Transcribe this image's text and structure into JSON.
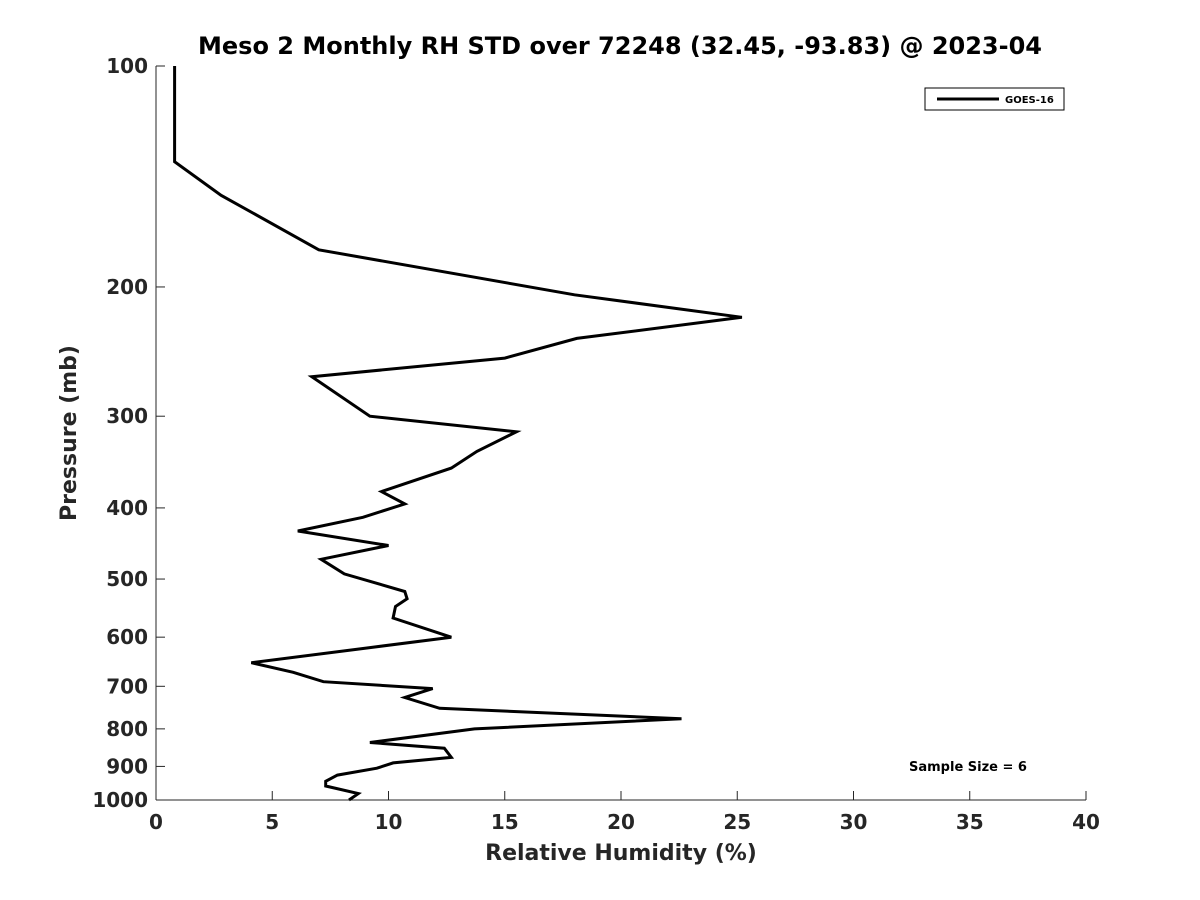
{
  "chart_data": {
    "type": "line",
    "title": "Meso 2 Monthly RH STD over 72248 (32.45, -93.83) @ 2023-04",
    "xlabel": "Relative Humidity (%)",
    "ylabel": "Pressure (mb)",
    "xlim": [
      0,
      40
    ],
    "ylim": [
      100,
      1000
    ],
    "y_scale": "log",
    "y_reversed": true,
    "x_ticks": [
      0,
      5,
      10,
      15,
      20,
      25,
      30,
      35,
      40
    ],
    "y_ticks": [
      100,
      200,
      300,
      400,
      500,
      600,
      700,
      800,
      900,
      1000
    ],
    "grid": false,
    "legend_position": "top-right",
    "series": [
      {
        "name": "GOES-16",
        "color": "#000000",
        "x": [
          0.8,
          0.8,
          0.8,
          0.8,
          2.8,
          7.0,
          18.0,
          25.2,
          18.1,
          15.0,
          6.7,
          9.2,
          15.5,
          13.8,
          12.7,
          9.7,
          10.7,
          8.9,
          6.1,
          10.0,
          7.1,
          8.1,
          10.7,
          10.8,
          10.3,
          10.2,
          12.7,
          9.2,
          4.1,
          5.9,
          7.2,
          11.9,
          10.7,
          12.2,
          22.6,
          13.7,
          9.2,
          12.4,
          12.7,
          10.2,
          9.5,
          7.8,
          7.3,
          7.3,
          8.7,
          8.3
        ],
        "y": [
          100,
          112,
          125,
          135,
          150,
          178,
          205,
          220,
          235,
          250,
          265,
          300,
          315,
          335,
          353,
          380,
          395,
          412,
          430,
          450,
          470,
          492,
          520,
          532,
          545,
          565,
          600,
          620,
          650,
          670,
          690,
          705,
          725,
          750,
          775,
          800,
          835,
          850,
          875,
          890,
          905,
          925,
          943,
          957,
          980,
          1000
        ]
      }
    ],
    "annotations": [
      "Sample Size = 6"
    ]
  }
}
